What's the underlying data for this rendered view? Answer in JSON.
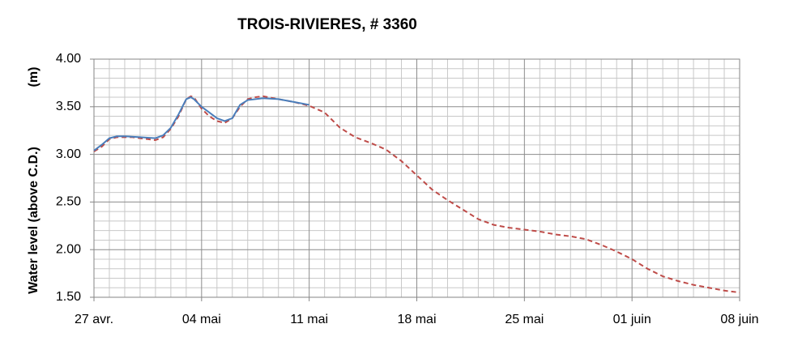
{
  "chart_data": {
    "type": "line",
    "title": "TROIS-RIVIERES, # 3360",
    "ylabel": "Water level (above C.D.)",
    "yunit": "(m)",
    "xlim": [
      0,
      42
    ],
    "xticks": [
      {
        "value": 0,
        "label": "27 avr."
      },
      {
        "value": 7,
        "label": "04 mai"
      },
      {
        "value": 14,
        "label": "11 mai"
      },
      {
        "value": 21,
        "label": "18 mai"
      },
      {
        "value": 28,
        "label": "25 mai"
      },
      {
        "value": 35,
        "label": "01 juin"
      },
      {
        "value": 42,
        "label": "08 juin"
      }
    ],
    "ylim": [
      1.5,
      4.0
    ],
    "yticks": [
      {
        "value": 1.5,
        "label": "1.50"
      },
      {
        "value": 2.0,
        "label": "2.00"
      },
      {
        "value": 2.5,
        "label": "2.50"
      },
      {
        "value": 3.0,
        "label": "3.00"
      },
      {
        "value": 3.5,
        "label": "3.50"
      },
      {
        "value": 4.0,
        "label": "4.00"
      }
    ],
    "grid": true,
    "minor_grid": true,
    "series": [
      {
        "color": "#be4b48",
        "dashed": true,
        "x": [
          0,
          0.5,
          1,
          1.5,
          2,
          2.5,
          3,
          3.5,
          4,
          4.5,
          5,
          5.5,
          6,
          6.3,
          6.5,
          7,
          7.5,
          8,
          8.5,
          9,
          9.5,
          10,
          10.5,
          11,
          12,
          13,
          14,
          15,
          16,
          17,
          18,
          19,
          20,
          21,
          22,
          23,
          24,
          25,
          26,
          27,
          28,
          29,
          30,
          31,
          32,
          33,
          34,
          35,
          36,
          37,
          38,
          39,
          40,
          41,
          42
        ],
        "values": [
          3.03,
          3.08,
          3.16,
          3.18,
          3.18,
          3.18,
          3.17,
          3.16,
          3.15,
          3.18,
          3.27,
          3.4,
          3.58,
          3.61,
          3.6,
          3.48,
          3.4,
          3.35,
          3.33,
          3.38,
          3.5,
          3.58,
          3.6,
          3.61,
          3.58,
          3.55,
          3.51,
          3.44,
          3.28,
          3.18,
          3.12,
          3.05,
          2.93,
          2.78,
          2.63,
          2.52,
          2.42,
          2.32,
          2.26,
          2.23,
          2.21,
          2.19,
          2.16,
          2.14,
          2.11,
          2.05,
          1.98,
          1.9,
          1.8,
          1.72,
          1.67,
          1.63,
          1.6,
          1.57,
          1.55
        ]
      },
      {
        "color": "#4a7ebb",
        "dashed": false,
        "x": [
          0,
          0.5,
          1,
          1.5,
          2,
          3,
          4,
          4.5,
          5,
          5.5,
          6,
          6.3,
          6.5,
          7,
          7.5,
          8,
          8.5,
          9,
          9.5,
          10,
          11,
          12,
          13,
          14
        ],
        "values": [
          3.04,
          3.1,
          3.17,
          3.19,
          3.19,
          3.18,
          3.17,
          3.2,
          3.28,
          3.42,
          3.58,
          3.6,
          3.58,
          3.5,
          3.44,
          3.38,
          3.35,
          3.38,
          3.52,
          3.57,
          3.59,
          3.58,
          3.55,
          3.52
        ]
      }
    ]
  }
}
